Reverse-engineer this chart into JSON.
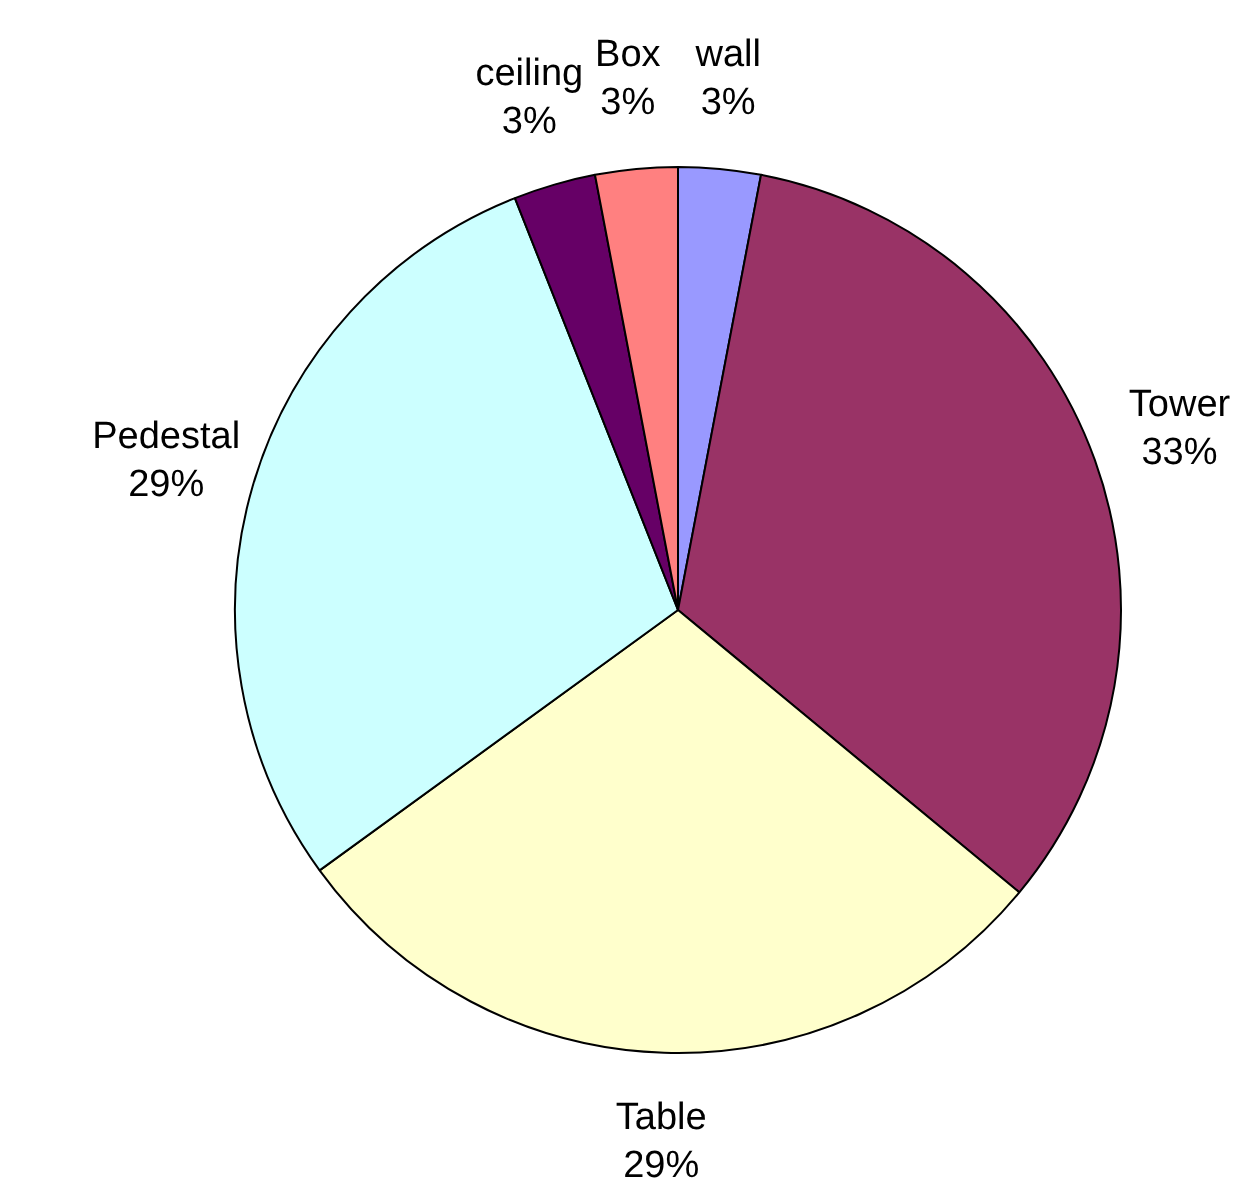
{
  "chart_data": {
    "type": "pie",
    "categories": [
      "wall",
      "Tower",
      "Table",
      "Pedestal",
      "ceiling",
      "Box"
    ],
    "values": [
      3,
      33,
      29,
      29,
      3,
      3
    ],
    "colors": [
      "#9999ff",
      "#993366",
      "#ffffcc",
      "#ccffff",
      "#660066",
      "#ff8080"
    ],
    "value_labels": [
      "3%",
      "33%",
      "29%",
      "29%",
      "3%",
      "3%"
    ],
    "legend": false
  }
}
